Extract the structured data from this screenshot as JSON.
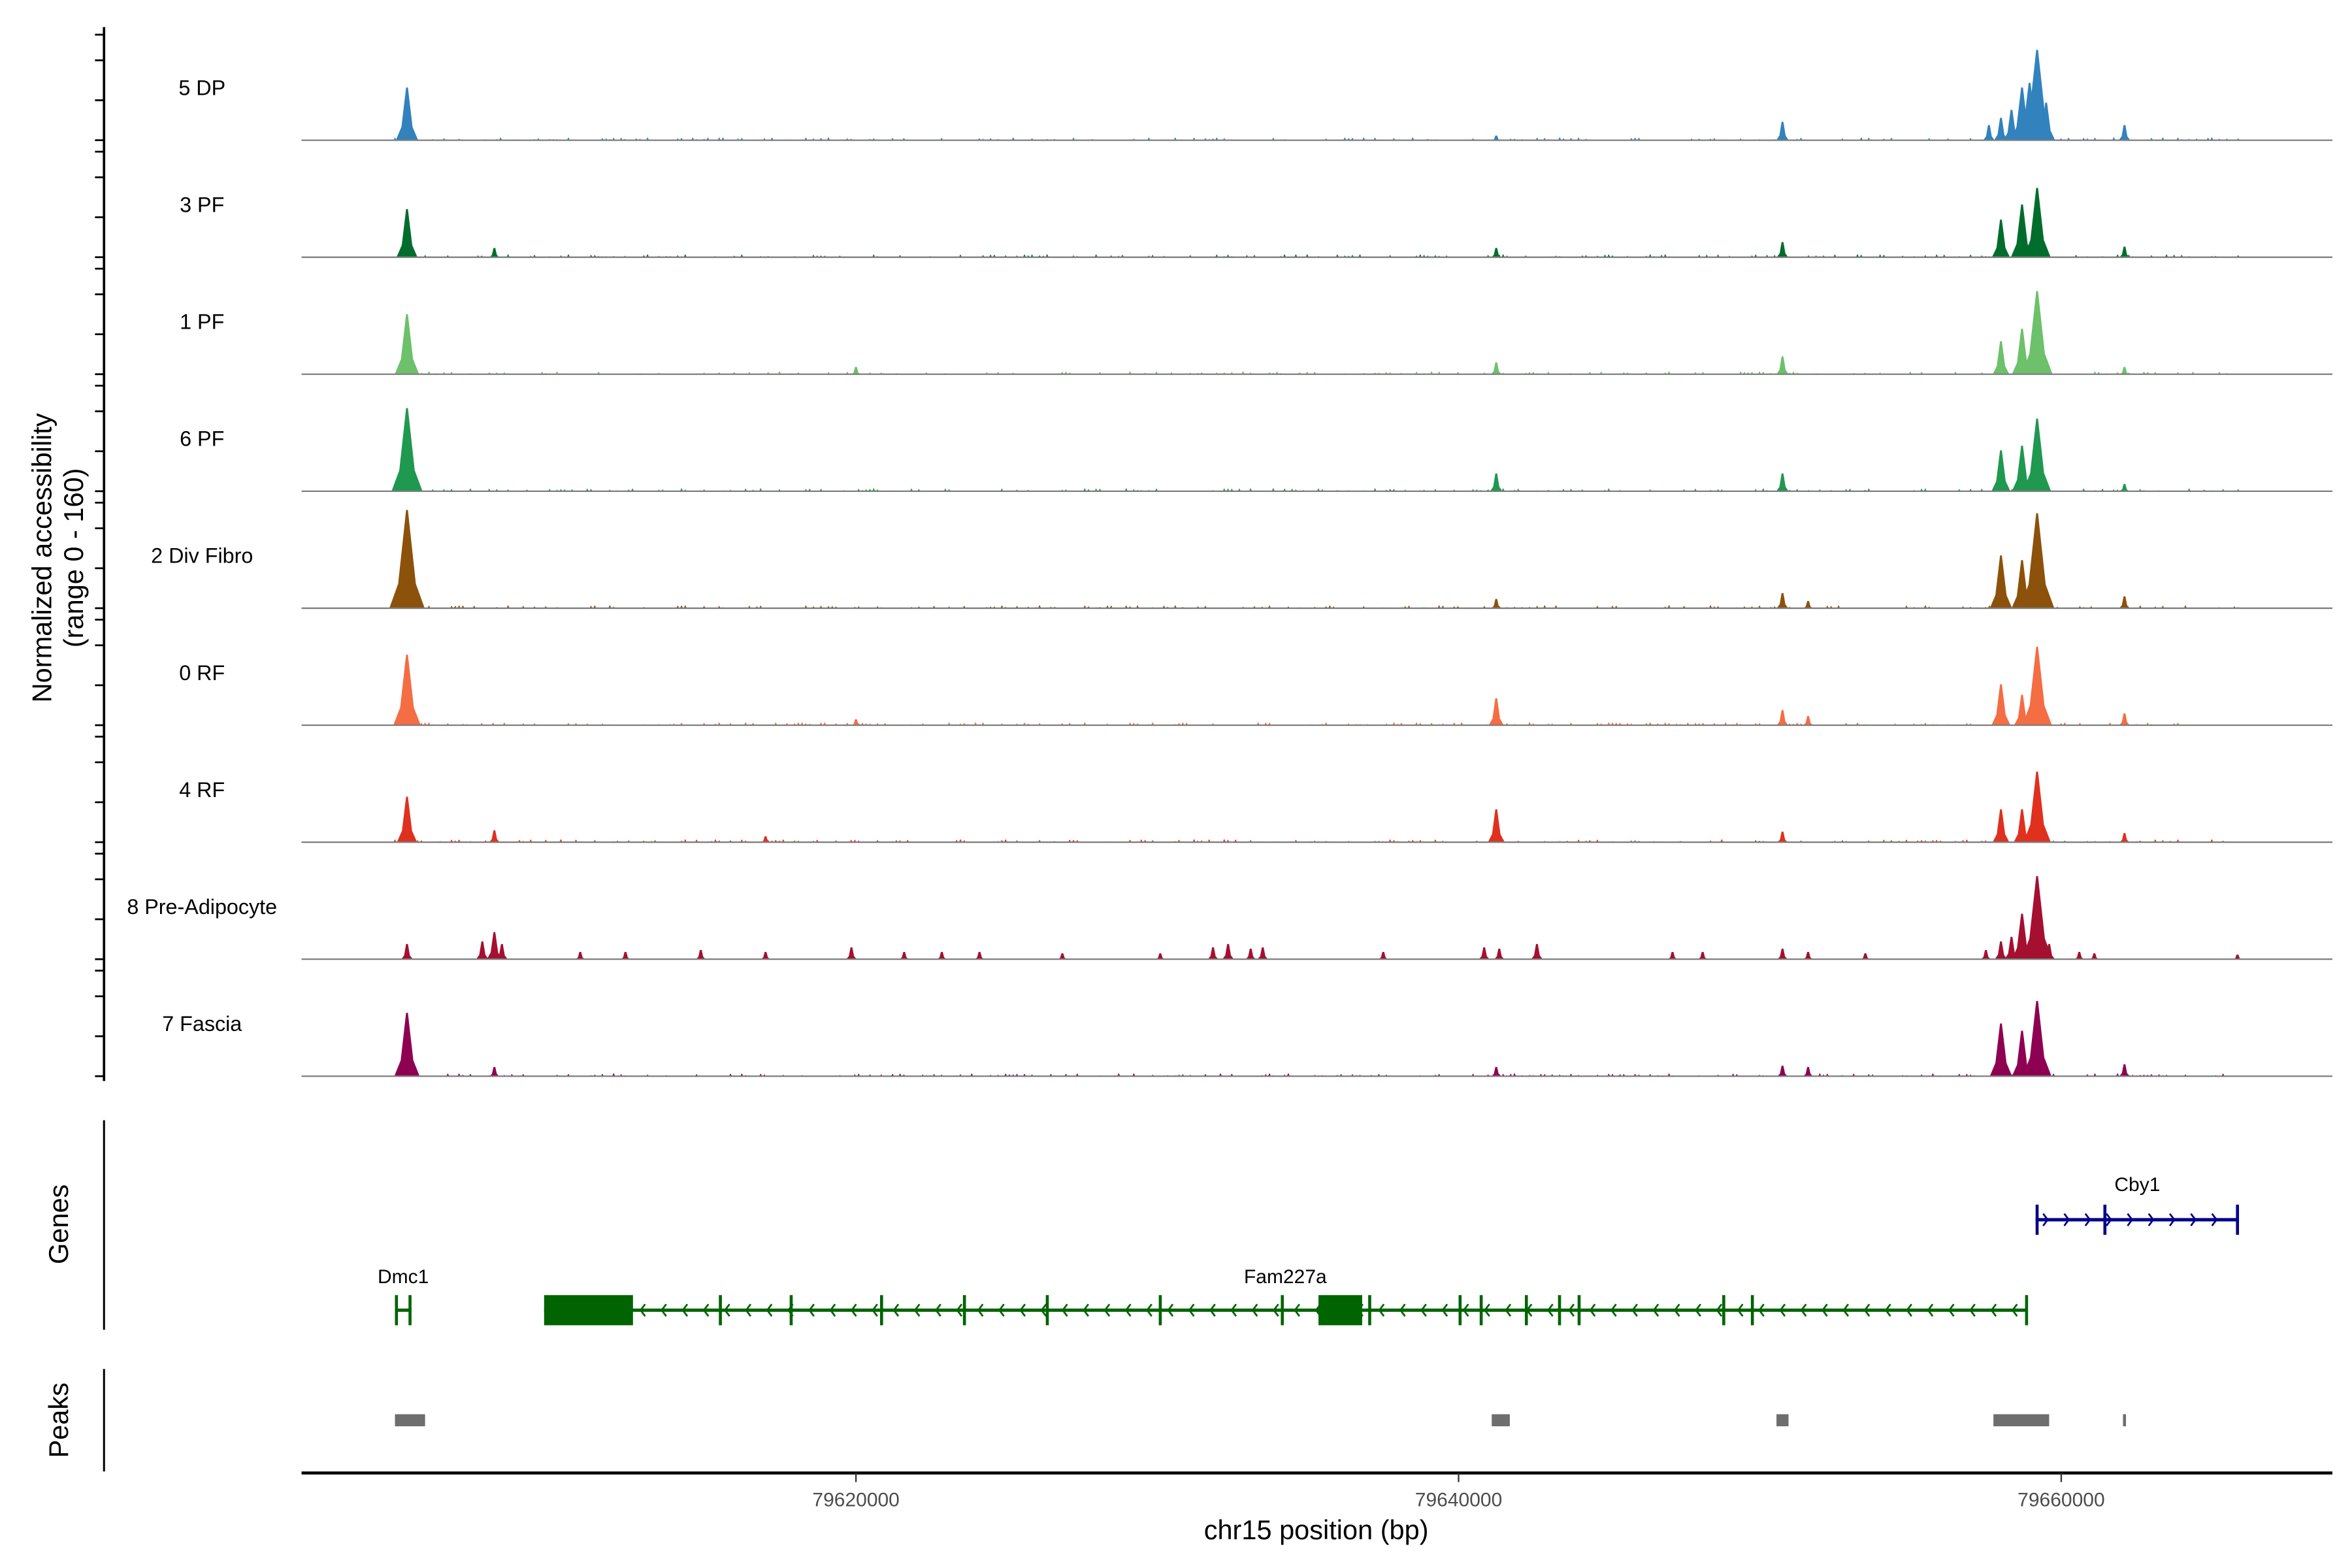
{
  "chart_data": {
    "type": "area",
    "title": "",
    "xlabel": "chr15 position (bp)",
    "ylabel": "Normalized accessibility",
    "ylabel_range": "(range 0 - 160)",
    "ylim": [
      0,
      160
    ],
    "xlim": [
      79601600,
      79669000
    ],
    "x_ticks": [
      79620000,
      79640000,
      79660000
    ],
    "x_tick_labels": [
      "79620000",
      "79640000",
      "79660000"
    ],
    "baseline_color": "#7f7f7f",
    "tracks": [
      {
        "name": "5 DP",
        "color": "#3182bd",
        "peaks": [
          [
            79605100,
            80
          ],
          [
            79641250,
            7
          ],
          [
            79650750,
            28
          ],
          [
            79657600,
            23
          ],
          [
            79658000,
            34
          ],
          [
            79658350,
            46
          ],
          [
            79658700,
            80
          ],
          [
            79658950,
            87
          ],
          [
            79659200,
            137
          ],
          [
            79659500,
            57
          ],
          [
            79662100,
            23
          ]
        ]
      },
      {
        "name": "3 PF",
        "color": "#006d2c",
        "peaks": [
          [
            79605100,
            73
          ],
          [
            79608000,
            14
          ],
          [
            79641250,
            14
          ],
          [
            79650750,
            23
          ],
          [
            79658000,
            57
          ],
          [
            79658700,
            80
          ],
          [
            79659200,
            105
          ],
          [
            79662100,
            16
          ]
        ]
      },
      {
        "name": "1 PF",
        "color": "#6cc16a",
        "peaks": [
          [
            79605100,
            91
          ],
          [
            79620000,
            11
          ],
          [
            79641250,
            18
          ],
          [
            79650750,
            27
          ],
          [
            79658000,
            50
          ],
          [
            79658700,
            69
          ],
          [
            79659200,
            126
          ],
          [
            79662100,
            11
          ]
        ]
      },
      {
        "name": "6 PF",
        "color": "#1f9850",
        "peaks": [
          [
            79605100,
            126
          ],
          [
            79641250,
            27
          ],
          [
            79650750,
            27
          ],
          [
            79658000,
            62
          ],
          [
            79658700,
            69
          ],
          [
            79659200,
            110
          ],
          [
            79662100,
            11
          ]
        ]
      },
      {
        "name": "2 Div Fibro",
        "color": "#8c510a",
        "peaks": [
          [
            79605100,
            149
          ],
          [
            79641250,
            14
          ],
          [
            79650750,
            23
          ],
          [
            79651600,
            11
          ],
          [
            79658000,
            80
          ],
          [
            79658700,
            73
          ],
          [
            79659200,
            144
          ],
          [
            79662100,
            18
          ]
        ]
      },
      {
        "name": "0 RF",
        "color": "#f46d43",
        "peaks": [
          [
            79605100,
            107
          ],
          [
            79620000,
            9
          ],
          [
            79641250,
            41
          ],
          [
            79650750,
            23
          ],
          [
            79651600,
            14
          ],
          [
            79658000,
            62
          ],
          [
            79658700,
            46
          ],
          [
            79659200,
            119
          ],
          [
            79662100,
            18
          ]
        ]
      },
      {
        "name": "4 RF",
        "color": "#e0301e",
        "peaks": [
          [
            79605100,
            69
          ],
          [
            79608000,
            18
          ],
          [
            79617000,
            9
          ],
          [
            79641250,
            50
          ],
          [
            79650750,
            16
          ],
          [
            79658000,
            50
          ],
          [
            79658700,
            50
          ],
          [
            79659200,
            107
          ],
          [
            79662100,
            14
          ]
        ]
      },
      {
        "name": "8 Pre-Adipocyte",
        "color": "#a50f30",
        "peaks": [
          [
            79605100,
            23
          ],
          [
            79607600,
            27
          ],
          [
            79608000,
            41
          ],
          [
            79608250,
            23
          ],
          [
            79610850,
            11
          ],
          [
            79612350,
            11
          ],
          [
            79614850,
            14
          ],
          [
            79617000,
            11
          ],
          [
            79619850,
            18
          ],
          [
            79621600,
            11
          ],
          [
            79622850,
            11
          ],
          [
            79624100,
            11
          ],
          [
            79626850,
            9
          ],
          [
            79630100,
            9
          ],
          [
            79631850,
            18
          ],
          [
            79632350,
            23
          ],
          [
            79633100,
            16
          ],
          [
            79633500,
            18
          ],
          [
            79637500,
            11
          ],
          [
            79640850,
            18
          ],
          [
            79641350,
            16
          ],
          [
            79642600,
            23
          ],
          [
            79647100,
            11
          ],
          [
            79648100,
            11
          ],
          [
            79650750,
            16
          ],
          [
            79651600,
            11
          ],
          [
            79653500,
            9
          ],
          [
            79657500,
            14
          ],
          [
            79658000,
            27
          ],
          [
            79658350,
            34
          ],
          [
            79658700,
            69
          ],
          [
            79659200,
            126
          ],
          [
            79659600,
            23
          ],
          [
            79660600,
            11
          ],
          [
            79661100,
            9
          ],
          [
            79665850,
            7
          ]
        ]
      },
      {
        "name": "7 Fascia",
        "color": "#8e0152",
        "peaks": [
          [
            79605100,
            96
          ],
          [
            79608000,
            14
          ],
          [
            79641250,
            14
          ],
          [
            79650750,
            16
          ],
          [
            79651600,
            14
          ],
          [
            79658000,
            80
          ],
          [
            79658700,
            69
          ],
          [
            79659200,
            114
          ],
          [
            79662100,
            18
          ]
        ]
      }
    ],
    "genes_panel_label": "Genes",
    "genes": [
      {
        "name": "Dmc1",
        "strand": "-",
        "color": "#006400",
        "start": 79604700,
        "end": 79605250,
        "exons": [
          [
            79604700,
            79604800
          ],
          [
            79605150,
            79605250
          ]
        ],
        "row": 2
      },
      {
        "name": "Fam227a",
        "strand": "-",
        "color": "#006400",
        "start": 79609650,
        "end": 79658850,
        "exons": [
          [
            79609650,
            79612600
          ],
          [
            79615450,
            79615500
          ],
          [
            79617800,
            79617850
          ],
          [
            79620800,
            79620850
          ],
          [
            79623550,
            79623600
          ],
          [
            79626300,
            79626320
          ],
          [
            79630050,
            79630070
          ],
          [
            79634100,
            79634120
          ],
          [
            79635350,
            79636800
          ],
          [
            79637000,
            79637050
          ],
          [
            79640000,
            79640020
          ],
          [
            79640700,
            79640720
          ],
          [
            79642200,
            79642250
          ],
          [
            79643300,
            79643320
          ],
          [
            79643950,
            79643970
          ],
          [
            79648750,
            79648770
          ],
          [
            79649700,
            79649750
          ],
          [
            79658800,
            79658850
          ]
        ],
        "row": 2
      },
      {
        "name": "Cby1",
        "strand": "+",
        "color": "#00008b",
        "start": 79659150,
        "end": 79665900,
        "exons": [
          [
            79659150,
            79659180
          ],
          [
            79661400,
            79661450
          ],
          [
            79665800,
            79665900
          ]
        ],
        "row": 1
      }
    ],
    "peaks_panel_label": "Peaks",
    "peak_regions": [
      [
        79604700,
        79605700
      ],
      [
        79641100,
        79641700
      ],
      [
        79650550,
        79650950
      ],
      [
        79657750,
        79659600
      ],
      [
        79662050,
        79662150
      ]
    ],
    "peak_color": "#6e6e6e"
  }
}
